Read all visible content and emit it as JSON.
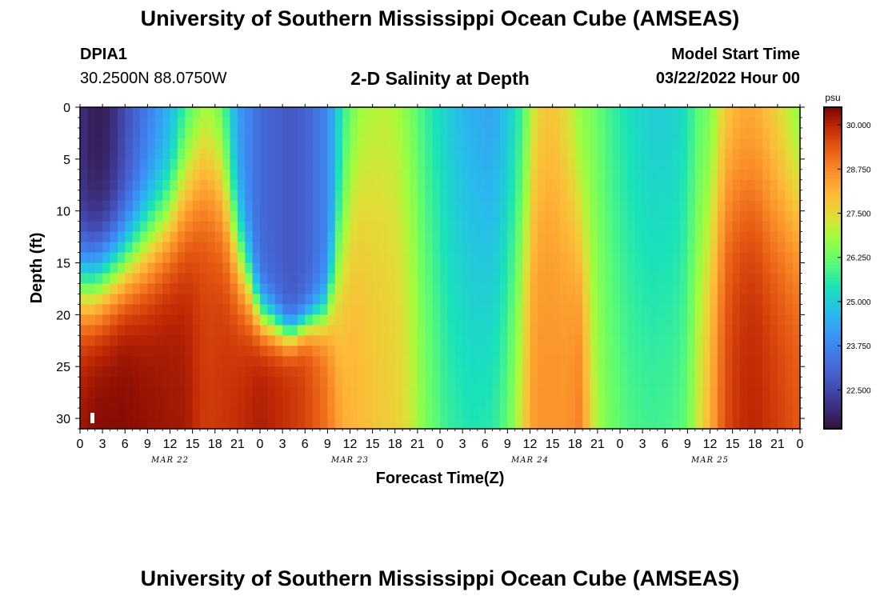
{
  "header": {
    "title": "University of Southern Mississippi Ocean Cube (AMSEAS)",
    "station_id": "DPIA1",
    "station_coords": "30.2500N  88.0750W",
    "plot_title": "2-D Salinity at Depth",
    "model_start_label": "Model Start Time",
    "model_start_value": "03/22/2022 Hour 00"
  },
  "footer": {
    "title": "University of Southern Mississippi Ocean Cube (AMSEAS)"
  },
  "chart_data": {
    "type": "heatmap",
    "variable": "salinity",
    "units": "psu",
    "xlabel": "Forecast Time(Z)",
    "ylabel": "Depth (ft)",
    "x_range_hours": [
      0,
      96
    ],
    "y_range_ft": [
      0,
      31
    ],
    "x_tick_hours": [
      0,
      3,
      6,
      9,
      12,
      15,
      18,
      21,
      24,
      27,
      30,
      33,
      36,
      39,
      42,
      45,
      48,
      51,
      54,
      57,
      60,
      63,
      66,
      69,
      72,
      75,
      78,
      81,
      84,
      87,
      90,
      93,
      96
    ],
    "x_tick_labels": [
      "0",
      "3",
      "6",
      "9",
      "12",
      "15",
      "18",
      "21",
      "0",
      "3",
      "6",
      "9",
      "12",
      "15",
      "18",
      "21",
      "0",
      "3",
      "6",
      "9",
      "12",
      "15",
      "18",
      "21",
      "0",
      "3",
      "6",
      "9",
      "12",
      "15",
      "18",
      "21",
      "0"
    ],
    "date_labels": [
      {
        "hour": 12,
        "label": "MAR 22"
      },
      {
        "hour": 36,
        "label": "MAR 23"
      },
      {
        "hour": 60,
        "label": "MAR 24"
      },
      {
        "hour": 84,
        "label": "MAR 25"
      }
    ],
    "y_ticks": [
      0,
      5,
      10,
      15,
      20,
      25,
      30
    ],
    "colorbar": {
      "units_label": "psu",
      "range": [
        21.4,
        30.5
      ],
      "ticks": [
        30.0,
        28.75,
        27.5,
        26.25,
        25.0,
        23.75,
        22.5
      ],
      "tick_labels": [
        "30.000",
        "28.750",
        "27.500",
        "26.250",
        "25.000",
        "23.750",
        "22.500"
      ]
    },
    "profiles": [
      {
        "hour": 0,
        "surface": 22.0,
        "bottom": 30.2,
        "mid_depth": 17,
        "width": 2.5
      },
      {
        "hour": 2,
        "surface": 21.6,
        "bottom": 30.4,
        "mid_depth": 17,
        "width": 2.5
      },
      {
        "hour": 4,
        "surface": 21.8,
        "bottom": 30.4,
        "mid_depth": 16,
        "width": 2.5
      },
      {
        "hour": 6,
        "surface": 22.6,
        "bottom": 30.4,
        "mid_depth": 15,
        "width": 2.5
      },
      {
        "hour": 9,
        "surface": 23.5,
        "bottom": 30.3,
        "mid_depth": 13,
        "width": 3.0
      },
      {
        "hour": 12,
        "surface": 24.5,
        "bottom": 30.2,
        "mid_depth": 11,
        "width": 3.0
      },
      {
        "hour": 14,
        "surface": 25.2,
        "bottom": 30.2,
        "mid_depth": 8,
        "width": 4.0
      },
      {
        "hour": 16,
        "surface": 26.0,
        "bottom": 29.8,
        "mid_depth": 6,
        "width": 4.0
      },
      {
        "hour": 17,
        "surface": 26.3,
        "bottom": 29.7,
        "mid_depth": 6,
        "width": 4.0
      },
      {
        "hour": 19,
        "surface": 25.8,
        "bottom": 29.8,
        "mid_depth": 8,
        "width": 4.0
      },
      {
        "hour": 21,
        "surface": 24.2,
        "bottom": 29.9,
        "mid_depth": 14,
        "width": 3.0
      },
      {
        "hour": 24,
        "surface": 23.2,
        "bottom": 30.1,
        "mid_depth": 20,
        "width": 1.5
      },
      {
        "hour": 28,
        "surface": 22.8,
        "bottom": 29.8,
        "mid_depth": 22,
        "width": 1.0
      },
      {
        "hour": 30,
        "surface": 23.0,
        "bottom": 29.6,
        "mid_depth": 21,
        "width": 1.0
      },
      {
        "hour": 33,
        "surface": 23.8,
        "bottom": 29.0,
        "mid_depth": 20,
        "width": 1.5
      },
      {
        "hour": 35,
        "surface": 25.5,
        "bottom": 28.3,
        "mid_depth": 14,
        "width": 5.0
      },
      {
        "hour": 37,
        "surface": 26.2,
        "bottom": 28.1,
        "mid_depth": 6,
        "width": 6.0
      },
      {
        "hour": 40,
        "surface": 26.6,
        "bottom": 27.8,
        "mid_depth": 4,
        "width": 8.0
      },
      {
        "hour": 42,
        "surface": 26.5,
        "bottom": 27.7,
        "mid_depth": 4,
        "width": 8.0
      },
      {
        "hour": 44,
        "surface": 26.0,
        "bottom": 27.3,
        "mid_depth": 6,
        "width": 8.0
      },
      {
        "hour": 46,
        "surface": 25.5,
        "bottom": 26.6,
        "mid_depth": 12,
        "width": 10.0
      },
      {
        "hour": 49,
        "surface": 24.8,
        "bottom": 25.9,
        "mid_depth": 15,
        "width": 10.0
      },
      {
        "hour": 52,
        "surface": 24.2,
        "bottom": 25.7,
        "mid_depth": 15,
        "width": 10.0
      },
      {
        "hour": 55,
        "surface": 23.9,
        "bottom": 25.9,
        "mid_depth": 15,
        "width": 10.0
      },
      {
        "hour": 57,
        "surface": 24.5,
        "bottom": 26.5,
        "mid_depth": 15,
        "width": 10.0
      },
      {
        "hour": 59,
        "surface": 25.4,
        "bottom": 27.6,
        "mid_depth": 12,
        "width": 8.0
      },
      {
        "hour": 60,
        "surface": 26.5,
        "bottom": 28.3,
        "mid_depth": 8,
        "width": 6.0
      },
      {
        "hour": 61,
        "surface": 27.2,
        "bottom": 28.6,
        "mid_depth": 6,
        "width": 6.0
      },
      {
        "hour": 63,
        "surface": 27.6,
        "bottom": 28.6,
        "mid_depth": 6,
        "width": 6.0
      },
      {
        "hour": 65,
        "surface": 27.0,
        "bottom": 28.6,
        "mid_depth": 8,
        "width": 6.0
      },
      {
        "hour": 67,
        "surface": 26.4,
        "bottom": 29.0,
        "mid_depth": 14,
        "width": 5.0
      },
      {
        "hour": 68,
        "surface": 26.3,
        "bottom": 27.6,
        "mid_depth": 15,
        "width": 8.0
      },
      {
        "hour": 70,
        "surface": 25.8,
        "bottom": 26.6,
        "mid_depth": 15,
        "width": 10.0
      },
      {
        "hour": 73,
        "surface": 25.2,
        "bottom": 26.1,
        "mid_depth": 15,
        "width": 10.0
      },
      {
        "hour": 76,
        "surface": 24.8,
        "bottom": 26.0,
        "mid_depth": 15,
        "width": 10.0
      },
      {
        "hour": 79,
        "surface": 24.8,
        "bottom": 26.1,
        "mid_depth": 15,
        "width": 10.0
      },
      {
        "hour": 81,
        "surface": 25.2,
        "bottom": 26.4,
        "mid_depth": 15,
        "width": 10.0
      },
      {
        "hour": 82,
        "surface": 25.8,
        "bottom": 27.2,
        "mid_depth": 15,
        "width": 8.0
      },
      {
        "hour": 84,
        "surface": 26.2,
        "bottom": 28.2,
        "mid_depth": 12,
        "width": 6.0
      },
      {
        "hour": 86,
        "surface": 27.4,
        "bottom": 29.5,
        "mid_depth": 8,
        "width": 5.0
      },
      {
        "hour": 88,
        "surface": 27.9,
        "bottom": 29.9,
        "mid_depth": 8,
        "width": 5.0
      },
      {
        "hour": 90,
        "surface": 27.9,
        "bottom": 30.0,
        "mid_depth": 8,
        "width": 5.0
      },
      {
        "hour": 92,
        "surface": 27.6,
        "bottom": 29.8,
        "mid_depth": 10,
        "width": 5.0
      },
      {
        "hour": 94,
        "surface": 27.0,
        "bottom": 29.6,
        "mid_depth": 10,
        "width": 5.0
      },
      {
        "hour": 95,
        "surface": 26.5,
        "bottom": 29.5,
        "mid_depth": 10,
        "width": 5.0
      },
      {
        "hour": 96,
        "surface": 26.3,
        "bottom": 29.4,
        "mid_depth": 10,
        "width": 5.0
      }
    ]
  }
}
